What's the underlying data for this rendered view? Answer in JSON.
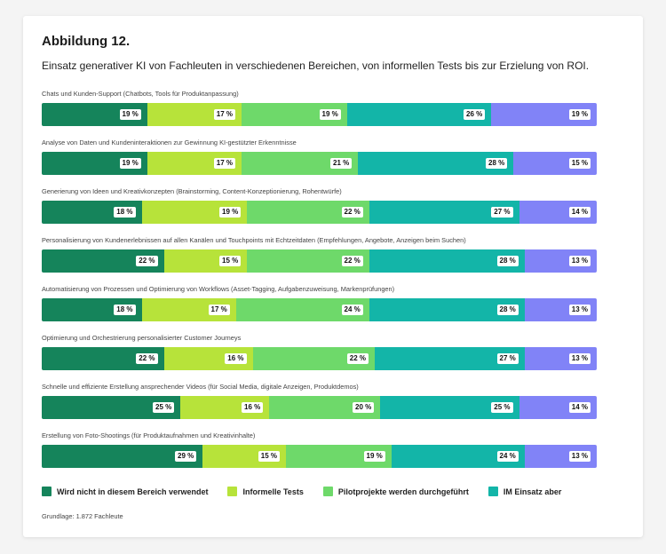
{
  "title": "Abbildung 12.",
  "subtitle": "Einsatz generativer KI von Fachleuten in verschiedenen Bereichen, von informellen Tests bis zur Erzielung von ROI.",
  "footnote": "Grundlage: 1.872 Fachleute",
  "colors": [
    "#15845b",
    "#b7e33a",
    "#6ed96a",
    "#13b5a8",
    "#8183f7"
  ],
  "chart_data": {
    "type": "bar",
    "orientation": "horizontal",
    "stacked": true,
    "categories": [
      "Chats und Kunden-Support (Chatbots, Tools für Produktanpassung)",
      "Analyse von Daten und Kundeninteraktionen zur Gewinnung KI-gestützter Erkenntnisse",
      "Generierung von Ideen und Kreativkonzepten (Brainstorming, Content-Konzeptionierung, Rohentwürfe)",
      "Personalisierung von Kundenerlebnissen auf allen Kanälen und Touchpoints mit Echtzeitdaten (Empfehlungen, Angebote, Anzeigen beim Suchen)",
      "Automatisierung von Prozessen und Optimierung von Workflows (Asset-Tagging, Aufgabenzuweisung, Markenprüfungen)",
      "Optimierung und Orchestrierung personalisierter Customer Journeys",
      "Schnelle und effiziente Erstellung ansprechender Videos (für Social Media, digitale Anzeigen, Produktdemos)",
      "Erstellung von Foto-Shootings (für Produktaufnahmen und Kreativinhalte)"
    ],
    "series": [
      {
        "name": "Wird nicht in diesem Bereich verwendet",
        "values": [
          19,
          19,
          18,
          22,
          18,
          22,
          25,
          29
        ]
      },
      {
        "name": "Informelle Tests",
        "values": [
          17,
          17,
          19,
          15,
          17,
          16,
          16,
          15
        ]
      },
      {
        "name": "Pilotprojekte werden durchgeführt",
        "values": [
          19,
          21,
          22,
          22,
          24,
          22,
          20,
          19
        ]
      },
      {
        "name": "IM Einsatz aber",
        "values": [
          26,
          28,
          27,
          28,
          28,
          27,
          25,
          24
        ]
      },
      {
        "name": "",
        "values": [
          19,
          15,
          14,
          13,
          13,
          13,
          14,
          13
        ]
      }
    ],
    "value_suffix": " %",
    "xlim": [
      0,
      100
    ],
    "grid": false,
    "legend": "bottom"
  }
}
